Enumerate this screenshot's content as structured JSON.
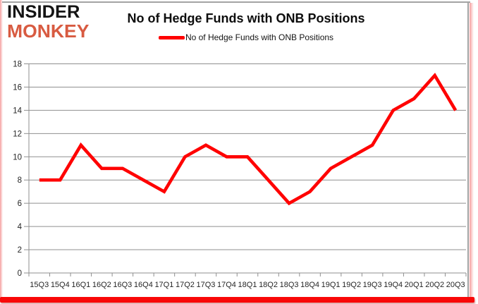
{
  "logo": {
    "line1": "INSIDER",
    "line2": "MONKEY"
  },
  "title": "No of Hedge Funds with ONB Positions",
  "legend": {
    "label": "No of Hedge Funds with ONB Positions"
  },
  "colors": {
    "series_line": "#ff0000",
    "grid_line": "#8f8f8f",
    "axis_text": "#262626",
    "logo_primary": "#141414",
    "logo_accent": "#d85b41",
    "bottom_bar": "#f90808",
    "frame_gray": "#a3a3a3",
    "frame_pink": "#f59e9e"
  },
  "chart_data": {
    "type": "line",
    "title": "No of Hedge Funds with ONB Positions",
    "xlabel": "",
    "ylabel": "",
    "categories": [
      "15Q3",
      "15Q4",
      "16Q1",
      "16Q2",
      "16Q3",
      "16Q4",
      "17Q1",
      "17Q2",
      "17Q3",
      "17Q4",
      "18Q1",
      "18Q2",
      "18Q3",
      "18Q4",
      "19Q1",
      "19Q2",
      "19Q3",
      "19Q4",
      "20Q1",
      "20Q2",
      "20Q3"
    ],
    "series": [
      {
        "name": "No of Hedge Funds with ONB Positions",
        "color": "#ff0000",
        "values": [
          8,
          8,
          11,
          9,
          9,
          8,
          7,
          10,
          11,
          10,
          10,
          8,
          6,
          7,
          9,
          10,
          11,
          14,
          15,
          17,
          14
        ]
      }
    ],
    "ylim": [
      0,
      18
    ],
    "ytick_step": 2,
    "grid": true,
    "legend_position": "top-center",
    "markers": false
  }
}
